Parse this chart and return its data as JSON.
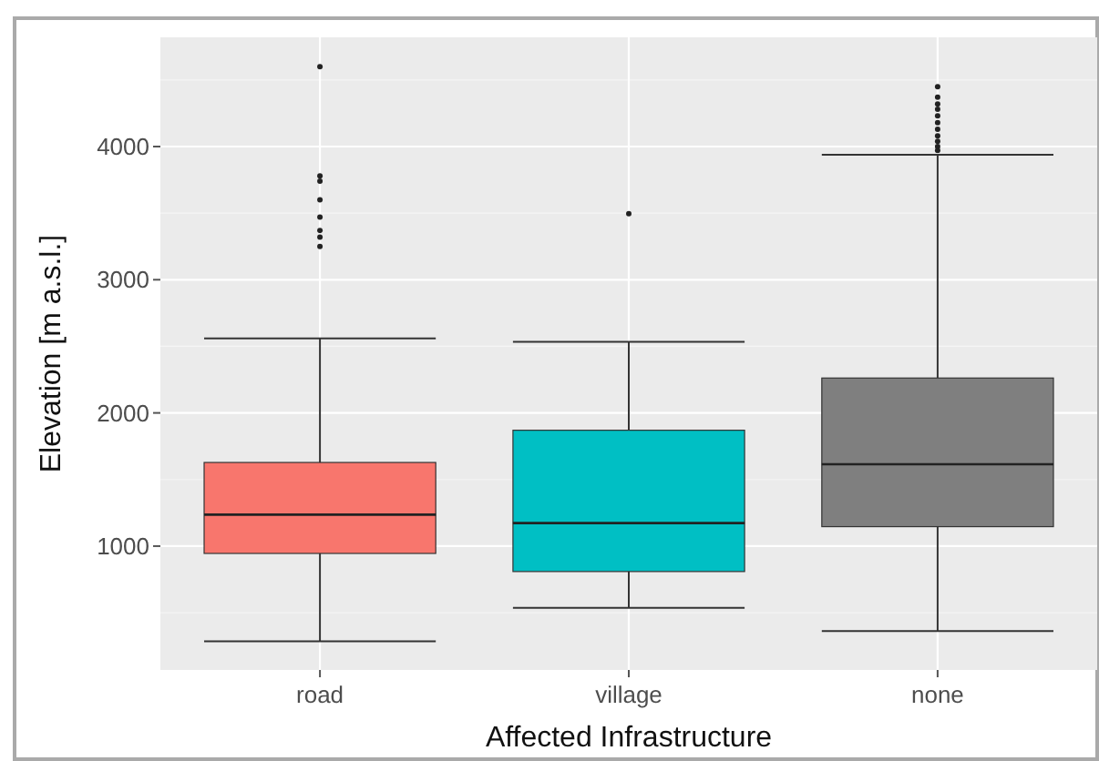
{
  "chart_data": {
    "type": "box",
    "xlabel": "Affected Infrastructure",
    "ylabel": "Elevation [m a.s.l.]",
    "categories": [
      "road",
      "village",
      "none"
    ],
    "colors": [
      "#f8766d",
      "#00bfc4",
      "#7f7f7f"
    ],
    "boxes": [
      {
        "low": 285,
        "q1": 945,
        "median": 1236,
        "q3": 1628,
        "high": 2560,
        "outliers": [
          4600,
          3780,
          3740,
          3600,
          3470,
          3370,
          3320,
          3250
        ]
      },
      {
        "low": 536,
        "q1": 809,
        "median": 1173,
        "q3": 1870,
        "high": 2534,
        "outliers": [
          3496
        ]
      },
      {
        "low": 362,
        "q1": 1146,
        "median": 1615,
        "q3": 2262,
        "high": 3938,
        "outliers": [
          4450,
          4370,
          4320,
          4280,
          4230,
          4180,
          4130,
          4080,
          4040,
          4000,
          3970
        ]
      }
    ],
    "ylim": [
      70,
      4820
    ],
    "yticks": [
      1000,
      2000,
      3000,
      4000
    ],
    "grid": true
  }
}
